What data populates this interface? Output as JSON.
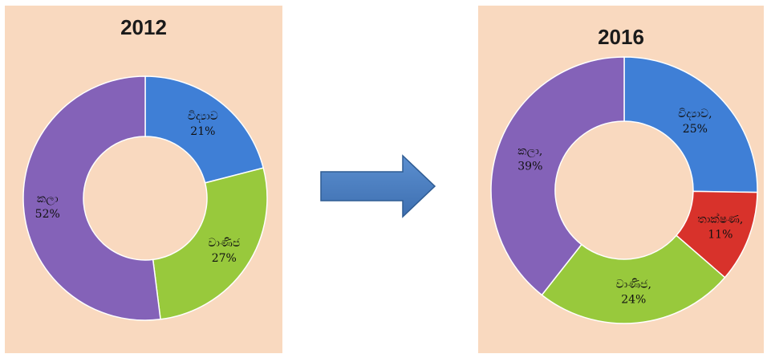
{
  "chart_data": [
    {
      "type": "pie",
      "title": "2012",
      "slices": [
        {
          "label": "විද්‍යාව",
          "value": 21,
          "display": "21%",
          "color": "#3f7fd6"
        },
        {
          "label": "වාණිජ",
          "value": 27,
          "display": "27%",
          "color": "#98c93c"
        },
        {
          "label": "කලා",
          "value": 52,
          "display": "52%",
          "color": "#8462b8"
        }
      ]
    },
    {
      "type": "pie",
      "title": "2016",
      "slices": [
        {
          "label": "විද්‍යාව,",
          "value": 25,
          "display": "25%",
          "color": "#3f7fd6"
        },
        {
          "label": "තාක්ෂණ,",
          "value": 11,
          "display": "11%",
          "color": "#d8322b"
        },
        {
          "label": "වාණිජ,",
          "value": 24,
          "display": "24%",
          "color": "#98c93c"
        },
        {
          "label": "කලා,",
          "value": 39,
          "display": "39%",
          "color": "#8462b8"
        }
      ]
    }
  ],
  "arrow": {
    "color": "#4a7fc1",
    "icon": "right-arrow-icon"
  }
}
